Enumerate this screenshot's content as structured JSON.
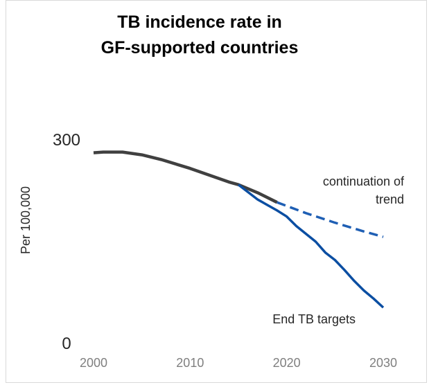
{
  "chart_data": {
    "type": "line",
    "title": "TB incidence rate in",
    "subtitle": "GF-supported countries",
    "xlabel": "",
    "ylabel": "Per 100,000",
    "xlim": [
      2000,
      2030
    ],
    "ylim": [
      0,
      300
    ],
    "x_ticks": [
      "2000",
      "2010",
      "2020",
      "2030"
    ],
    "y_ticks": [
      "300",
      "0"
    ],
    "grid": false,
    "colors": {
      "historical": "#404040",
      "continuation": "#1f5fb4",
      "targets": "#0b4ea2"
    },
    "series": [
      {
        "key": "historical",
        "style": "solid",
        "points": [
          [
            2000,
            281
          ],
          [
            2001,
            282
          ],
          [
            2003,
            282
          ],
          [
            2005,
            278
          ],
          [
            2007,
            271
          ],
          [
            2010,
            258
          ],
          [
            2012,
            248
          ],
          [
            2014,
            238
          ],
          [
            2015,
            234
          ],
          [
            2017,
            222
          ],
          [
            2019,
            208
          ]
        ]
      },
      {
        "key": "continuation",
        "style": "dashed",
        "points": [
          [
            2019,
            208
          ],
          [
            2022,
            192
          ],
          [
            2025,
            178
          ],
          [
            2028,
            165
          ],
          [
            2030,
            157
          ]
        ]
      },
      {
        "key": "targets",
        "style": "solid",
        "points": [
          [
            2015,
            234
          ],
          [
            2017,
            212
          ],
          [
            2019,
            196
          ],
          [
            2020,
            187
          ],
          [
            2021,
            173
          ],
          [
            2023,
            150
          ],
          [
            2024,
            134
          ],
          [
            2025,
            123
          ],
          [
            2026,
            108
          ],
          [
            2027,
            92
          ],
          [
            2028,
            78
          ],
          [
            2029,
            66
          ],
          [
            2030,
            53
          ]
        ]
      }
    ],
    "annotations": {
      "continuation_line1": "continuation of",
      "continuation_line2": "trend",
      "targets_label": "End TB targets"
    }
  }
}
